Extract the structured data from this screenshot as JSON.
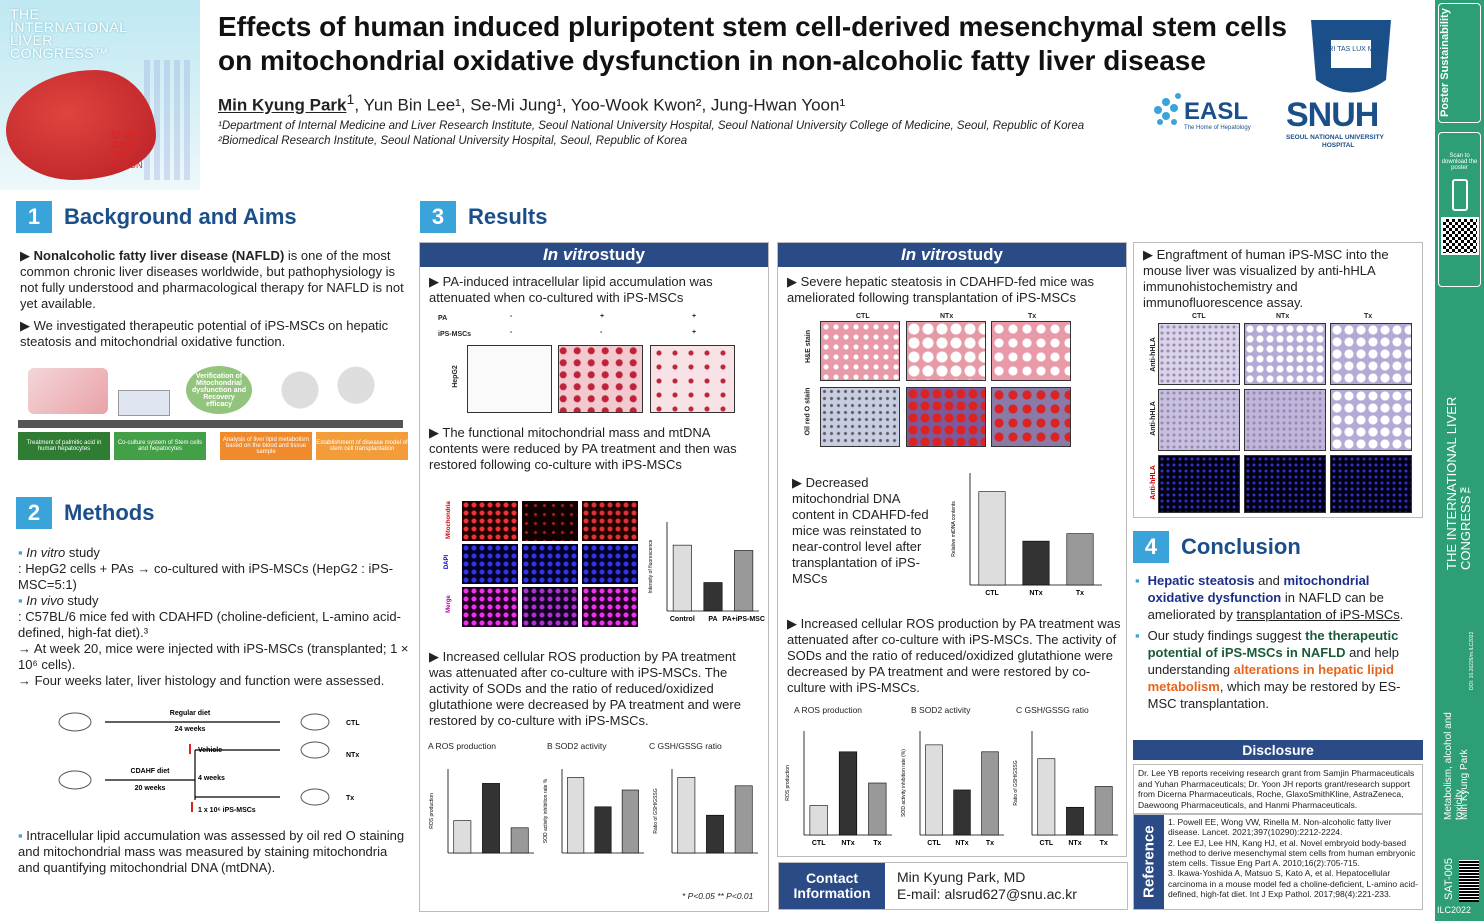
{
  "banner": {
    "line1": "THE",
    "line2": "INTERNATIONAL",
    "line3": "LIVER",
    "line4": "CONGRESS™",
    "dates": "22–26",
    "month": "JUNE",
    "year": "2022",
    "city": "LONDON"
  },
  "title": {
    "line1": "Effects of human induced pluripotent stem cell-derived mesenchymal stem cells",
    "line2": "on mitochondrial oxidative dysfunction in non-alcoholic fatty liver disease"
  },
  "authors": {
    "first": "Min Kyung Park",
    "rest": ", Yun Bin Lee¹, Se-Mi Jung¹, Yoo-Wook Kwon², Jung-Hwan Yoon¹",
    "firstsup": "1"
  },
  "affiliations": [
    "¹Department of Internal Medicine and Liver Research Institute, Seoul National University Hospital, Seoul National University College of Medicine, Seoul, Republic of Korea",
    "²Biomedical Research Institute, Seoul National University Hospital, Seoul, Republic of Korea"
  ],
  "logos": {
    "easl": "EASL",
    "easl_sub": "The Home of Hepatology",
    "snuh": "SNUH",
    "snuh_sub1": "SEOUL NATIONAL UNIVERSITY",
    "snuh_sub2": "HOSPITAL",
    "seal": "VERI TAS LUX MEA"
  },
  "sidebar": {
    "brand": "Poster Sustainability",
    "scan": "Scan to download the poster",
    "congress": "THE INTERNATIONAL LIVER CONGRESS™",
    "doi": "DOI: 10.26226/m.ILC2022",
    "topic": "Metabolism, alcohol and toxicity",
    "author": "Min Kyung Park",
    "code": "SAT-005",
    "footer": "ILC2022"
  },
  "s1": {
    "num": "1",
    "title": "Background and Aims",
    "p1_bold": "Nonalcoholic fatty liver disease (NAFLD)",
    "p1_rest": " is one of the most common chronic liver diseases worldwide, but pathophysiology is not fully understood and pharmacological therapy for NAFLD is not yet available.",
    "p2": "We investigated therapeutic potential of iPS-MSCs on hepatic steatosis and mitochondrial oxidative function.",
    "bubble": "Verification of Mitochondrial dysfunction and Recovery efficacy",
    "steps": [
      "Treatment of palmitic acid in human hepatocytes",
      "Co-culture system of Stem cells and hepatocytes",
      "Analysis of liver lipid metabolism based on the blood and tissue sample",
      "Establishment of disease model of stem cell transplantation"
    ]
  },
  "s2": {
    "num": "2",
    "title": "Methods",
    "l1a": "In vitro",
    "l1b": " study",
    "l1c": ": HepG2 cells + PAs → co-cultured with iPS-MSCs (HepG2 : iPS-MSC=5:1)",
    "l2a": "In vivo",
    "l2b": " study",
    "l2c": ": C57BL/6 mice fed with CDAHFD (choline-deficient, L-amino acid-defined, high-fat diet).³",
    "l2d": "→ At week 20, mice were injected with iPS-MSCs (transplanted; 1 × 10⁶ cells).",
    "l2e": "→ Four weeks later, liver histology and function were assessed.",
    "diagram": {
      "regular": "Regular diet",
      "w24": "24 weeks",
      "ctl": "CTL",
      "vehicle": "Vehicle",
      "cdahf": "CDAHF diet",
      "w20": "20 weeks",
      "w4": "4 weeks",
      "ntx": "NTx",
      "tx": "Tx",
      "cells": "1 x 10⁶ iPS-MSCs"
    },
    "l3": "Intracellular lipid accumulation was assessed by oil red O staining and mitochondrial mass was measured by staining mitochondria and quantifying mitochondrial DNA (mtDNA)."
  },
  "s3": {
    "num": "3",
    "title": "Results",
    "left": {
      "head": "In vitro",
      "head2": " study",
      "t1": "PA-induced intracellular lipid accumulation was attenuated when co-cultured with iPS-MSCs",
      "pa": "PA",
      "ips": "iPS-MSCs",
      "pa_vals": [
        "-",
        "+",
        "+"
      ],
      "ips_vals": [
        "-",
        "-",
        "+"
      ],
      "hepg2": "HepG2",
      "t2": "The functional mitochondrial mass and mtDNA contents were reduced by PA treatment and then was restored following co-culture with iPS-MSCs",
      "rows": [
        "Mitochondria",
        "DAPI",
        "Merge"
      ],
      "t3": "Increased cellular ROS production by PA treatment was attenuated after co-culture with iPS-MSCs. The activity of SODs and the ratio of reduced/oxidized glutathione were decreased by PA treatment and were restored by co-culture with iPS-MSCs.",
      "sig": "* P<0.05  ** P<0.01",
      "panA": "A  ROS production",
      "panB": "B  SOD2 activity",
      "panC": "C  GSH/GSSG ratio"
    },
    "mid": {
      "head": "In vitro",
      "head2": " study",
      "t1": "Severe hepatic steatosis in CDAHFD-fed mice was ameliorated following transplantation of iPS-MSCs",
      "cols": [
        "CTL",
        "NTx",
        "Tx"
      ],
      "rows": [
        "H&E stain",
        "Oil red O stain"
      ],
      "t2": "Decreased mitochondrial DNA content in CDAHFD-fed mice was reinstated to near-control level after transplantation of iPS-MSCs",
      "t3": "Increased cellular ROS production by PA treatment was attenuated after co-culture with iPS-MSCs. The activity of SODs and the ratio of reduced/oxidized glutathione were decreased by PA treatment and were restored by co-culture with iPS-MSCs.",
      "panA": "A  ROS production",
      "panB": "B  SOD2 activity",
      "panC": "C  GSH/GSSG ratio"
    },
    "right": {
      "t1": "Engraftment of human iPS-MSC into the mouse liver was visualized by anti-hHLA immunohistochemistry and immunofluorescence assay.",
      "cols": [
        "CTL",
        "NTx",
        "Tx"
      ],
      "rows": [
        "Anti-hHLA",
        "Anti-hHLA",
        "Anti-hHLA"
      ]
    }
  },
  "s4": {
    "num": "4",
    "title": "Conclusion",
    "b1a": "Hepatic steatosis",
    "b1b": " and ",
    "b1c": "mitochondrial oxidative dysfunction",
    "b1d": " in NAFLD can be ameliorated by ",
    "b1e": "transplantation of iPS-MSCs",
    "b1f": ".",
    "b2a": "Our study findings suggest ",
    "b2b": "the therapeutic potential of iPS-MSCs in NAFLD",
    "b2c": " and help understanding ",
    "b2d": "alterations in hepatic lipid metabolism",
    "b2e": ", which may be restored by ES-MSC transplantation."
  },
  "disclosure": {
    "head": "Disclosure",
    "text": "Dr. Lee YB reports receiving research grant from Samjin Pharmaceuticals and Yuhan Pharmaceuticals; Dr. Yoon JH reports grant/research support from Dicerna Pharmaceuticals, Roche, GlaxoSmithKline, AstraZeneca, Daewoong Pharmaceuticals, and Hanmi Pharmaceuticals."
  },
  "reference": {
    "head": "Reference",
    "r1": "1. Powell EE, Wong VW, Rinella M. Non-alcoholic fatty liver disease. Lancet. 2021;397(10290):2212-2224.",
    "r2": "2. Lee EJ, Lee HN, Kang HJ, et al. Novel embryoid body-based method to derive mesenchymal stem cells from human embryonic stem cells. Tissue Eng Part A. 2010;16(2):705-715.",
    "r3": "3. Ikawa-Yoshida A, Matsuo S, Kato A, et al. Hepatocellular carcinoma in a mouse model fed a choline-deficient, L-amino acid-defined, high-fat diet. Int J Exp Pathol. 2017;98(4):221-233."
  },
  "contact": {
    "label1": "Contact",
    "label2": "Information",
    "name": "Min Kyung Park, MD",
    "email": "E-mail: alsrud627@snu.ac.kr"
  },
  "chart_data": [
    {
      "id": "mito",
      "type": "bar",
      "categories": [
        "Control",
        "PA",
        "PA+iPS-MSC"
      ],
      "values": [
        0.37,
        0.16,
        0.34
      ],
      "ylabel": "Intensity of fluorescence",
      "ylim": [
        0,
        0.5
      ],
      "colors": [
        "#ddd",
        "#333",
        "#999"
      ]
    },
    {
      "id": "mtdna",
      "type": "bar",
      "categories": [
        "CTL",
        "NTx",
        "Tx"
      ],
      "values": [
        1.0,
        0.47,
        0.55
      ],
      "ylabel": "Relative mtDNA contents",
      "ylim": [
        0,
        1.2
      ],
      "colors": [
        "#ddd",
        "#333",
        "#999"
      ]
    },
    {
      "id": "vitroA",
      "type": "bar",
      "categories": [
        "",
        "",
        ""
      ],
      "values": [
        2.7,
        5.8,
        2.1
      ],
      "ylabel": "ROS production",
      "ylim": [
        0,
        7
      ],
      "colors": [
        "#ddd",
        "#333",
        "#999"
      ]
    },
    {
      "id": "vitroB",
      "type": "bar",
      "categories": [
        "",
        "",
        ""
      ],
      "values": [
        90,
        55,
        75
      ],
      "ylabel": "SOD activity inhibition rate %",
      "ylim": [
        0,
        100
      ],
      "colors": [
        "#ddd",
        "#333",
        "#999"
      ]
    },
    {
      "id": "vitroC",
      "type": "bar",
      "categories": [
        "",
        "",
        ""
      ],
      "values": [
        0.9,
        0.45,
        0.8
      ],
      "ylabel": "Ratio of GSH/GSSG",
      "ylim": [
        0,
        1
      ],
      "colors": [
        "#ddd",
        "#333",
        "#999"
      ]
    },
    {
      "id": "vivoA",
      "type": "bar",
      "categories": [
        "CTL",
        "NTx",
        "Tx"
      ],
      "values": [
        0.85,
        2.4,
        1.5
      ],
      "ylabel": "ROS production",
      "ylim": [
        0,
        3
      ],
      "colors": [
        "#ddd",
        "#333",
        "#999"
      ]
    },
    {
      "id": "vivoB",
      "type": "bar",
      "categories": [
        "CTL",
        "NTx",
        "Tx"
      ],
      "values": [
        26,
        13,
        24
      ],
      "ylabel": "SOD activity inhibition rate (%)",
      "ylim": [
        0,
        30
      ],
      "colors": [
        "#ddd",
        "#333",
        "#999"
      ]
    },
    {
      "id": "vivoC",
      "type": "bar",
      "categories": [
        "CTL",
        "NTx",
        "Tx"
      ],
      "values": [
        0.11,
        0.04,
        0.07
      ],
      "ylabel": "Ratio of GSH/GSSG",
      "ylim": [
        0,
        0.15
      ],
      "colors": [
        "#ddd",
        "#333",
        "#999"
      ]
    }
  ]
}
